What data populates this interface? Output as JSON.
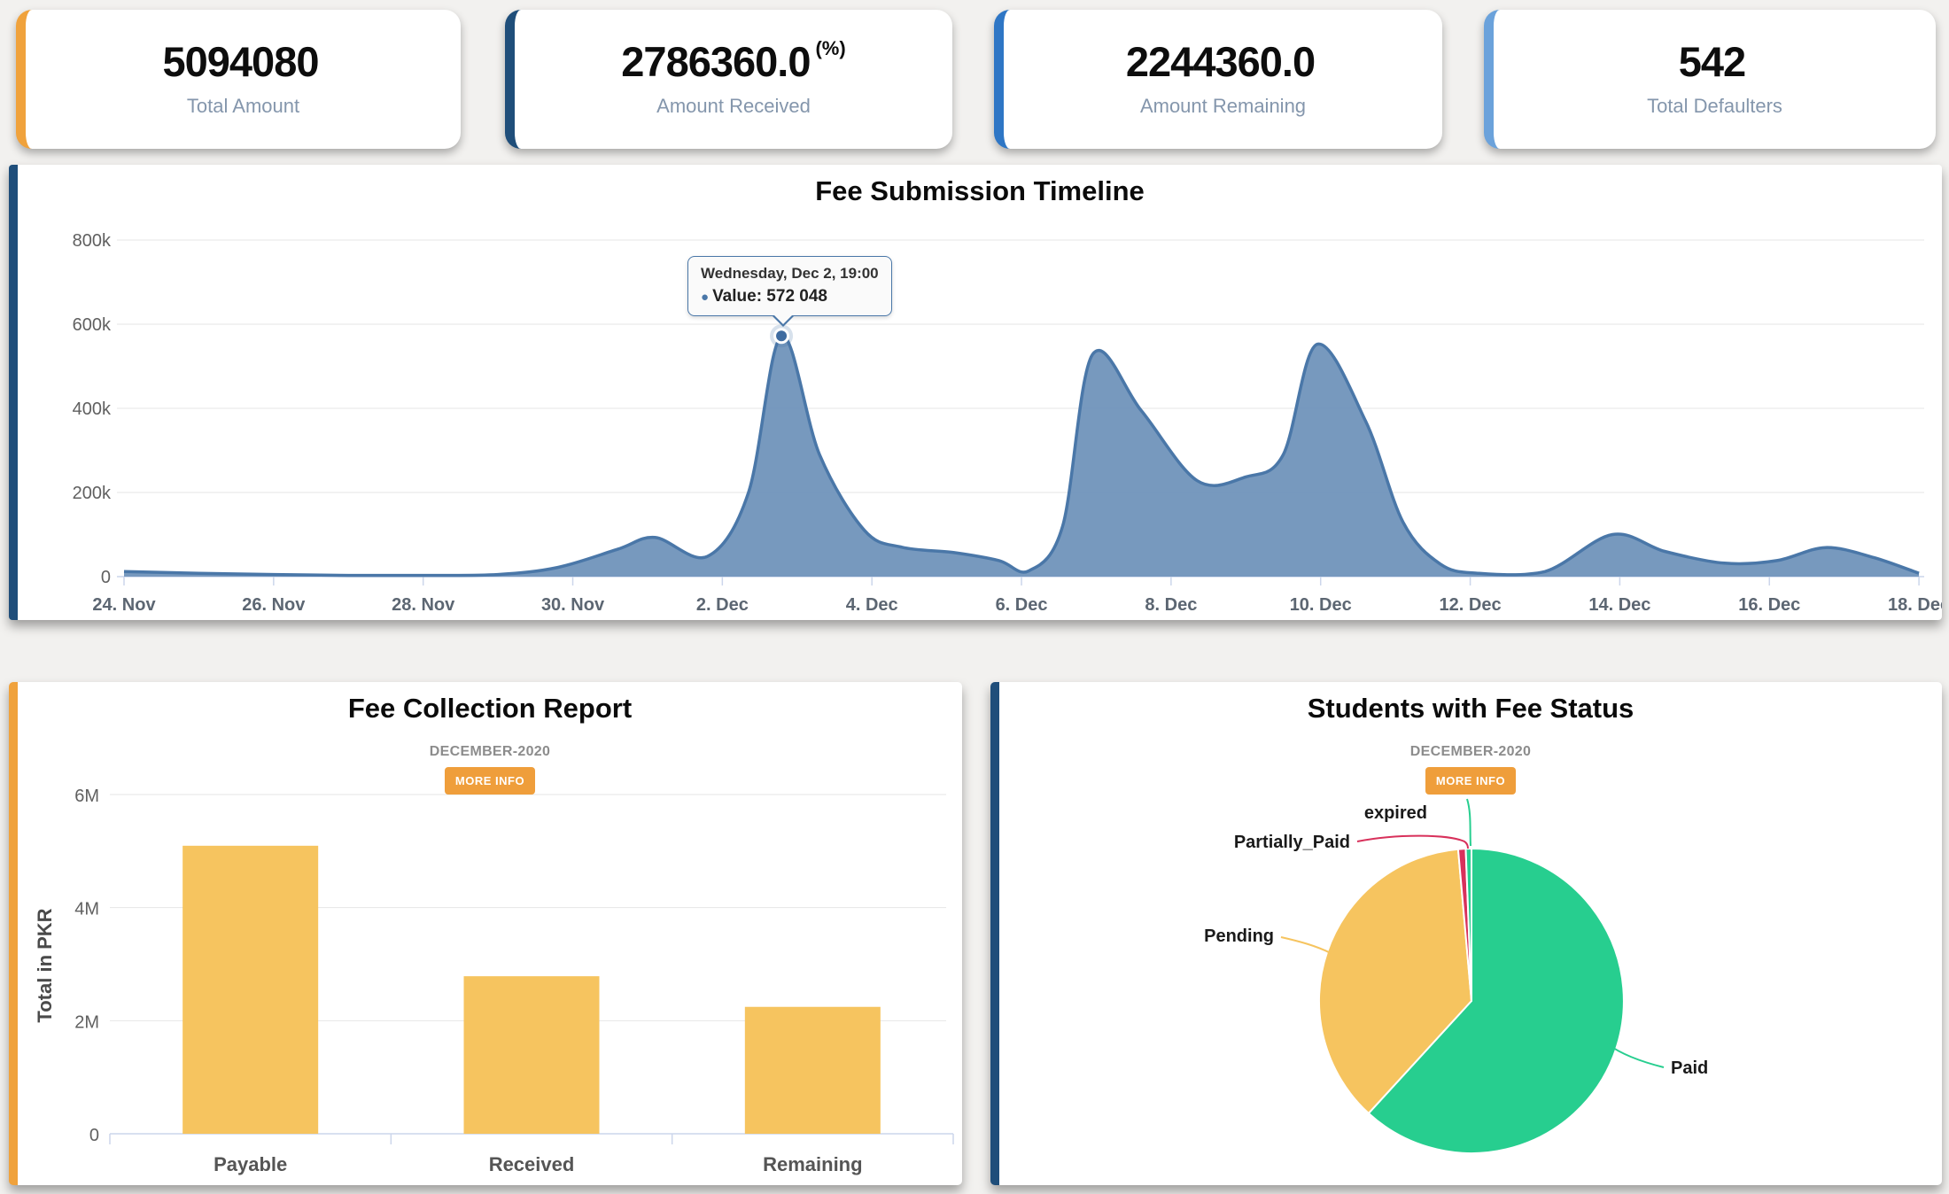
{
  "stat_cards": [
    {
      "value": "5094080",
      "suffix": "",
      "label": "Total Amount",
      "accent": "#F0A23C"
    },
    {
      "value": "2786360.0",
      "suffix": "(%)",
      "label": "Amount Received",
      "accent": "#1F4E7A"
    },
    {
      "value": "2244360.0",
      "suffix": "",
      "label": "Amount Remaining",
      "accent": "#2E76C5"
    },
    {
      "value": "542",
      "suffix": "",
      "label": "Total Defaulters",
      "accent": "#6BA2DB"
    }
  ],
  "chart_data": [
    {
      "id": "fee-submission-timeline",
      "type": "area",
      "title": "Fee Submission Timeline",
      "x_unit": "days since Nov 24 2020",
      "x": [
        0,
        1,
        2,
        3,
        4,
        5,
        5.8,
        6.6,
        7.1,
        7.8,
        8.35,
        8.79,
        9.3,
        9.9,
        10.4,
        11.1,
        11.7,
        12.1,
        12.55,
        12.95,
        13.6,
        14.35,
        15,
        15.5,
        15.95,
        16.6,
        17.1,
        17.6,
        18.1,
        19,
        19.9,
        20.6,
        21.4,
        22.1,
        22.75,
        23.4,
        24
      ],
      "values": [
        12000,
        8000,
        5000,
        3000,
        3000,
        5000,
        22000,
        65000,
        93000,
        48000,
        200000,
        572048,
        290000,
        110000,
        70000,
        57000,
        38000,
        14000,
        120000,
        528000,
        395000,
        228000,
        237000,
        290000,
        552000,
        370000,
        130000,
        30000,
        8000,
        12000,
        100000,
        60000,
        32000,
        38000,
        69000,
        45000,
        8000
      ],
      "x_tick_labels": [
        "24. Nov",
        "26. Nov",
        "28. Nov",
        "30. Nov",
        "2. Dec",
        "4. Dec",
        "6. Dec",
        "8. Dec",
        "10. Dec",
        "12. Dec",
        "14. Dec",
        "16. Dec",
        "18. Dec"
      ],
      "y_tick_labels": [
        "800k",
        "600k",
        "400k",
        "200k",
        "0"
      ],
      "ylim": [
        0,
        800000
      ],
      "grid": true,
      "legend": false,
      "marker": {
        "x": 8.79,
        "value": 572048
      },
      "tooltip": {
        "header": "Wednesday, Dec 2, 19:00",
        "text": "Value: 572 048"
      },
      "colors": {
        "fill": "#7094BB",
        "line": "#4A77A8"
      }
    },
    {
      "id": "fee-collection-report",
      "type": "bar",
      "title": "Fee Collection Report",
      "subtitle": "DECEMBER-2020",
      "button": "MORE INFO",
      "categories": [
        "Payable",
        "Received",
        "Remaining"
      ],
      "values": [
        5094080,
        2786360,
        2244360
      ],
      "xlabel": "",
      "ylabel": "Total in PKR",
      "y_tick_labels": [
        "6M",
        "4M",
        "2M",
        "0"
      ],
      "ylim": [
        0,
        6000000
      ],
      "grid": true,
      "legend": false,
      "bar_color": "#F6C45F"
    },
    {
      "id": "students-fee-status",
      "type": "pie",
      "title": "Students with Fee Status",
      "subtitle": "DECEMBER-2020",
      "button": "MORE INFO",
      "legend": false,
      "slices": [
        {
          "label": "Paid",
          "percent": 61.8,
          "color": "#27CE8F"
        },
        {
          "label": "Pending",
          "percent": 36.8,
          "color": "#F6C45F"
        },
        {
          "label": "Partially_Paid",
          "percent": 0.8,
          "color": "#D8315B"
        },
        {
          "label": "expired",
          "percent": 0.6,
          "color": "#27CE8F"
        }
      ]
    }
  ]
}
